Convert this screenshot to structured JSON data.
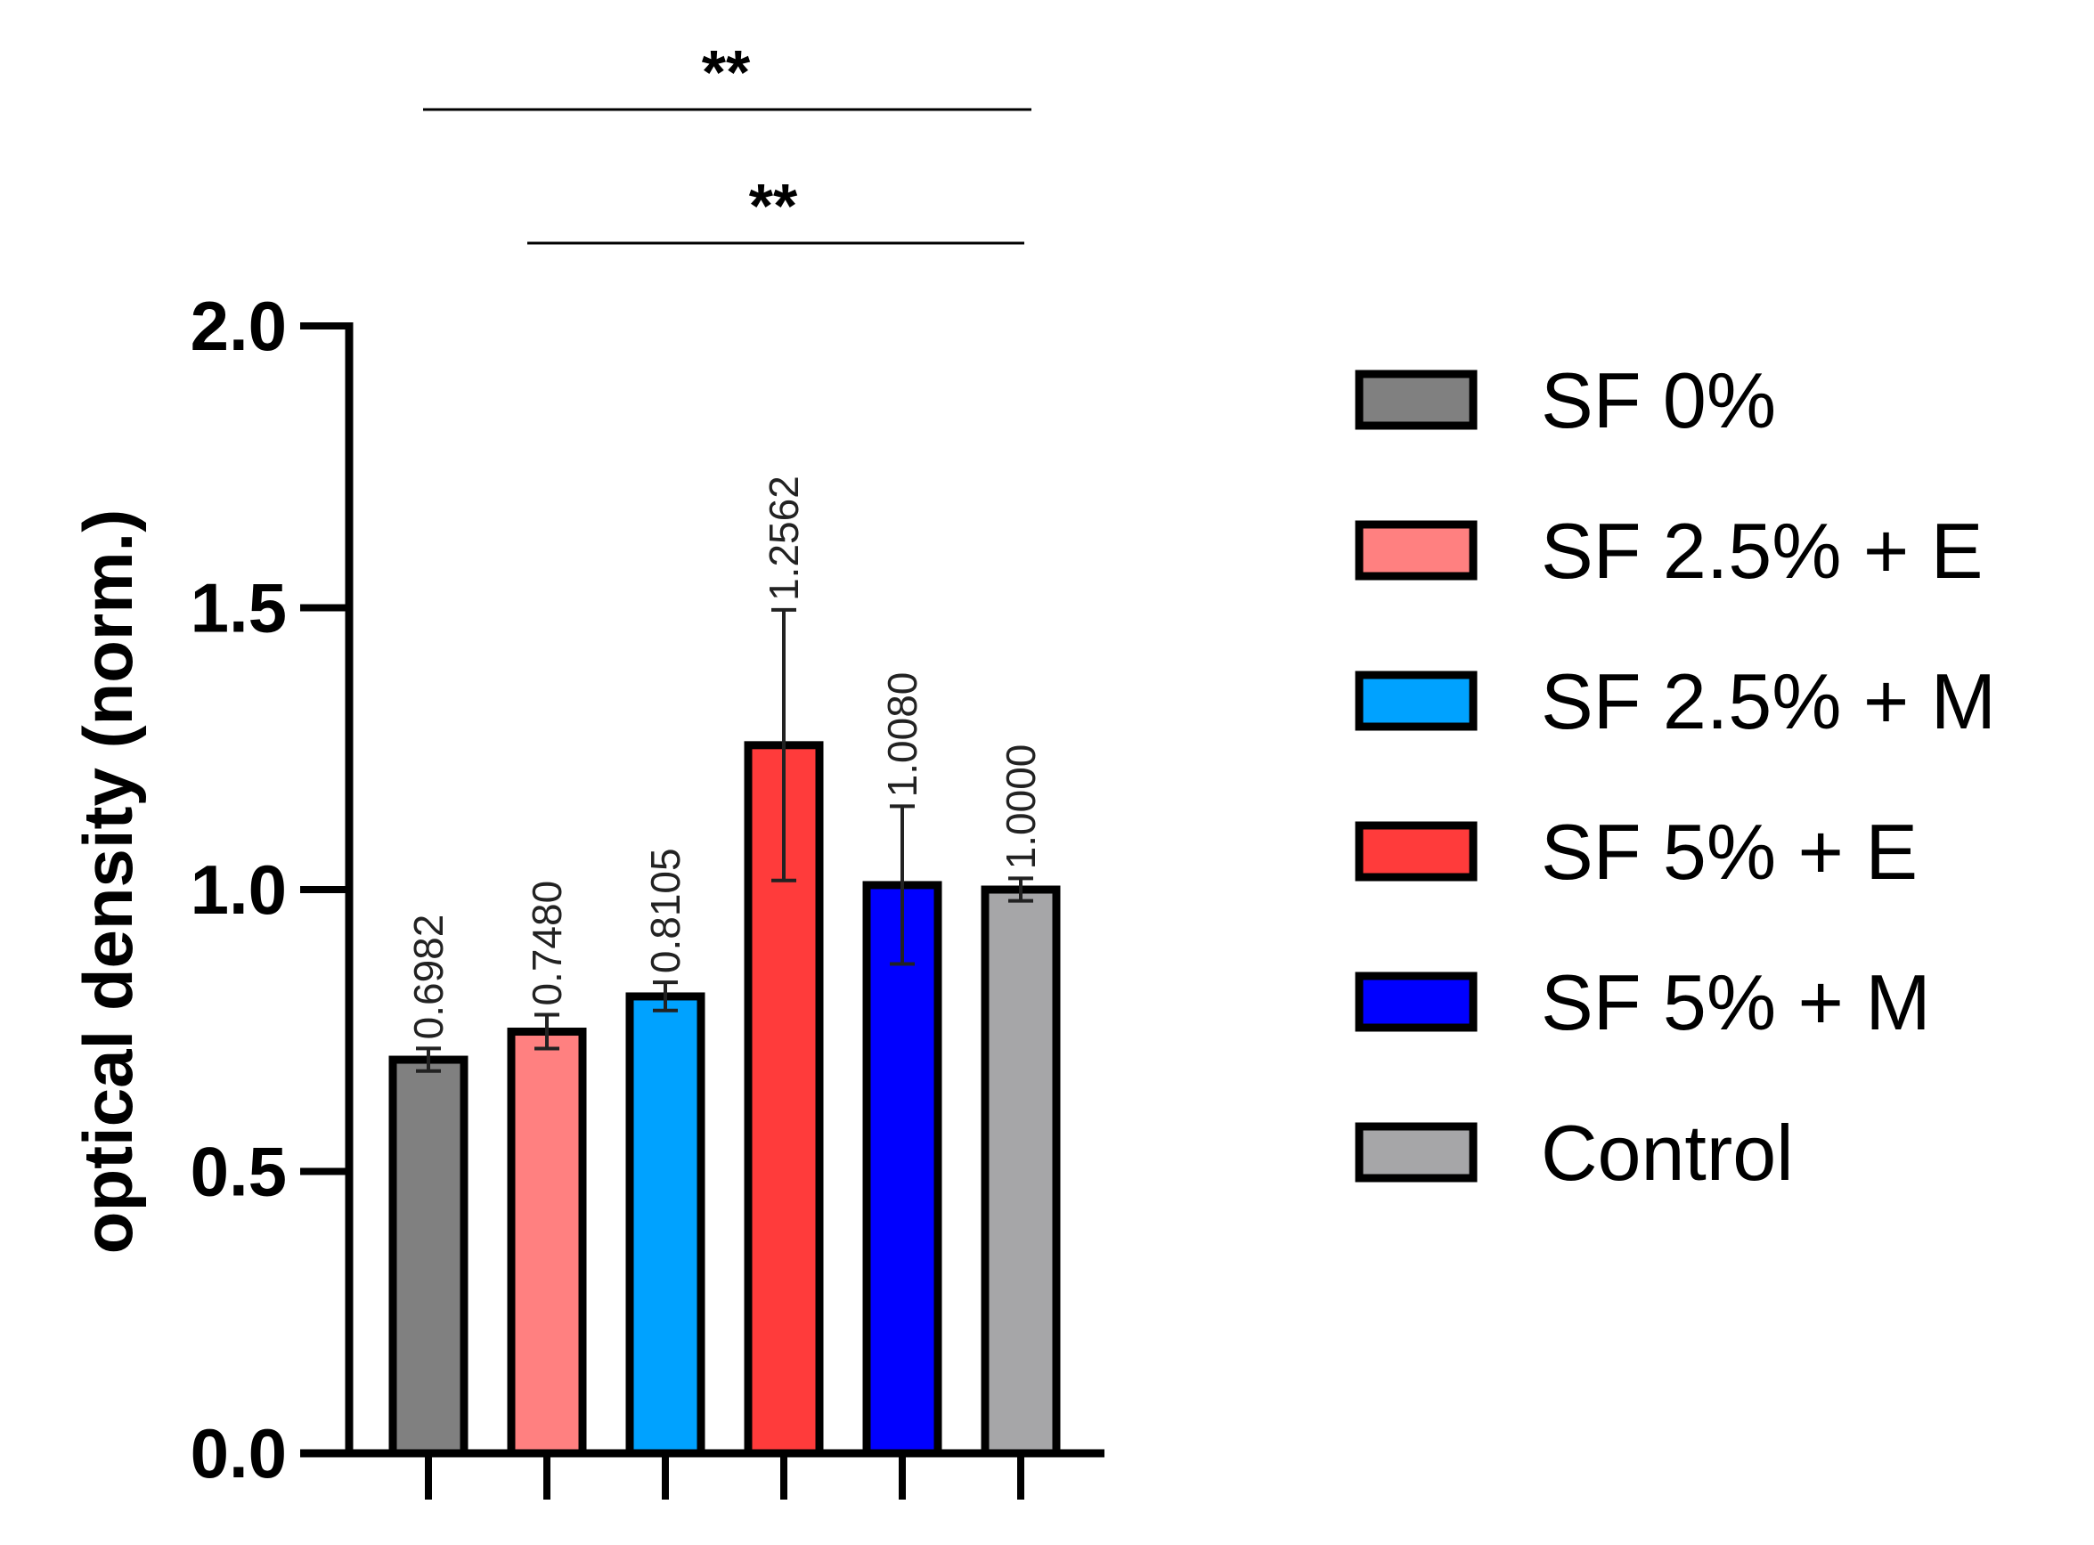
{
  "chart_data": {
    "type": "bar",
    "title": "",
    "xlabel": "",
    "ylabel": "optical density (norm.)",
    "ylim": [
      0,
      2.0
    ],
    "yticks": [
      0.0,
      0.5,
      1.0,
      1.5,
      2.0
    ],
    "ytick_labels": [
      "0.0",
      "0.5",
      "1.0",
      "1.5",
      "2.0"
    ],
    "categories": [
      "SF 0%",
      "SF 2.5% + E",
      "SF 2.5% + M",
      "SF 5% + E",
      "SF 5% + M",
      "Control"
    ],
    "values": [
      0.6982,
      0.748,
      0.8105,
      1.2562,
      1.008,
      1.0
    ],
    "value_labels": [
      "0.6982",
      "0.7480",
      "0.8105",
      "1.2562",
      "1.0080",
      "1.0000"
    ],
    "errors": [
      0.02,
      0.03,
      0.025,
      0.24,
      0.14,
      0.02
    ],
    "colors": [
      "#808080",
      "#FF8080",
      "#00A2FF",
      "#FF3B3B",
      "#0000FF",
      "#A6A6A8"
    ],
    "legend": {
      "placement": "right",
      "entries": [
        "SF 0%",
        "SF 2.5% + E",
        "SF 2.5% + M",
        "SF 5% + E",
        "SF 5% + M",
        "Control"
      ]
    },
    "significance": [
      {
        "label": "**",
        "from": 0,
        "to": 5
      },
      {
        "label": "**",
        "from": 1,
        "to": 5
      }
    ]
  }
}
